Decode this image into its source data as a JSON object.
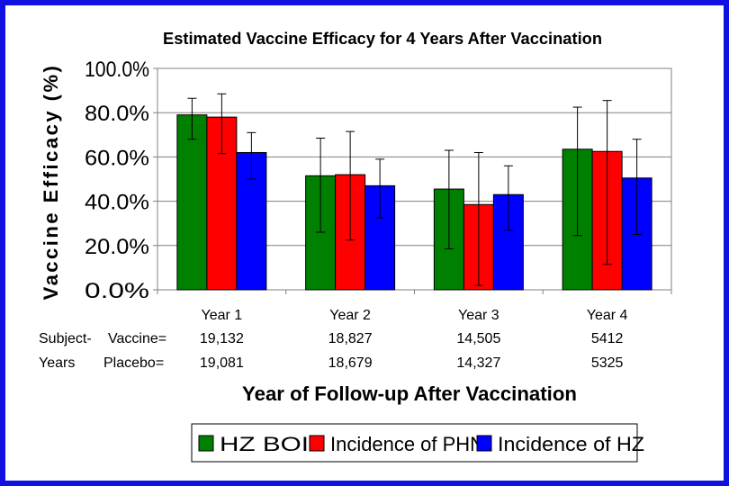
{
  "chart_data": {
    "type": "bar",
    "title": "Estimated Vaccine Efficacy for 4 Years After Vaccination",
    "ylabel": "Vaccine Efficacy (%)",
    "xlabel": "Year of Follow-up After Vaccination",
    "ylim": [
      0,
      100
    ],
    "yticks": [
      "100.0%",
      "80.0%",
      "60.0%",
      "40.0%",
      "20.0%",
      "0.0%"
    ],
    "ytick_values": [
      100,
      80,
      60,
      40,
      20,
      0
    ],
    "categories": [
      "Year 1",
      "Year 2",
      "Year 3",
      "Year 4"
    ],
    "grid": true,
    "legend_position": "bottom",
    "series": [
      {
        "name": "HZ BOI",
        "color": "#008000",
        "values": [
          79,
          51.5,
          45.5,
          63.5
        ],
        "ci_low": [
          68,
          26,
          18.5,
          24.5
        ],
        "ci_high": [
          86.5,
          68.5,
          63,
          82.5
        ]
      },
      {
        "name": "Incidence of PHN",
        "color": "#ff0000",
        "values": [
          78,
          52,
          38.5,
          62.5
        ],
        "ci_low": [
          61.5,
          22.5,
          2,
          11.5
        ],
        "ci_high": [
          88.5,
          71.5,
          62,
          85.5
        ]
      },
      {
        "name": "Incidence of HZ",
        "color": "#0000ff",
        "values": [
          62,
          47,
          43,
          50.5
        ],
        "ci_low": [
          50,
          32.5,
          27,
          25
        ],
        "ci_high": [
          71,
          59,
          56,
          68
        ]
      }
    ]
  },
  "subject_years": {
    "label_line1": "Subject-",
    "label_line2": "Years",
    "vaccine_label": "Vaccine=",
    "placebo_label": "Placebo=",
    "vaccine": [
      "19,132",
      "18,827",
      "14,505",
      "5412"
    ],
    "placebo": [
      "19,081",
      "18,679",
      "14,327",
      "5325"
    ]
  }
}
